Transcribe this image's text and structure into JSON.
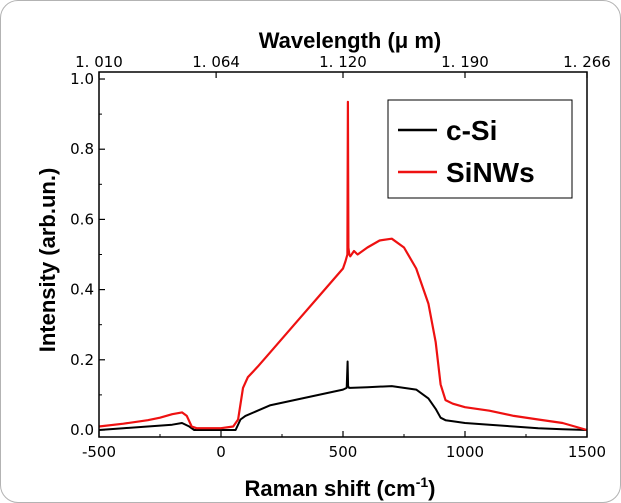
{
  "chart_data": {
    "type": "line",
    "xlabel": "Raman shift (cm",
    "xlabel_sup": "-1",
    "xlabel_tail": ")",
    "ylabel": "Intensity (arb.un.)",
    "top_axis_label": "Wavelength (μ m)",
    "xlim": [
      -500,
      1500
    ],
    "ylim": [
      -0.02,
      1.02
    ],
    "x_ticks": [
      -500,
      0,
      500,
      1000,
      1500
    ],
    "x_tick_labels": [
      "-500",
      "0",
      "500",
      "1000",
      "1500"
    ],
    "y_ticks": [
      0.0,
      0.2,
      0.4,
      0.6,
      0.8,
      1.0
    ],
    "y_tick_labels": [
      "0.0",
      "0.2",
      "0.4",
      "0.6",
      "0.8",
      "1.0"
    ],
    "top_ticks": [
      -500,
      -20,
      500,
      1000,
      1500
    ],
    "top_tick_labels": [
      "1. 010",
      "1. 064",
      "1. 120",
      "1. 190",
      "1. 266"
    ],
    "grid": false,
    "legend_position": "top-right",
    "series": [
      {
        "name": "c-Si",
        "color": "#000000",
        "x": [
          -500,
          -400,
          -300,
          -200,
          -160,
          -130,
          -110,
          -50,
          0,
          60,
          80,
          100,
          150,
          200,
          300,
          400,
          500,
          515,
          519,
          521,
          525,
          530,
          600,
          700,
          800,
          850,
          880,
          900,
          920,
          950,
          1000,
          1100,
          1200,
          1300,
          1400,
          1500
        ],
        "y": [
          0.0,
          0.005,
          0.01,
          0.015,
          0.02,
          0.01,
          0.0,
          0.0,
          0.0,
          0.0,
          0.03,
          0.04,
          0.055,
          0.07,
          0.085,
          0.1,
          0.115,
          0.12,
          0.195,
          0.125,
          0.12,
          0.12,
          0.122,
          0.125,
          0.115,
          0.09,
          0.06,
          0.035,
          0.028,
          0.025,
          0.02,
          0.015,
          0.01,
          0.005,
          0.002,
          0.0
        ]
      },
      {
        "name": "SiNWs",
        "color": "#ee1111",
        "x": [
          -500,
          -400,
          -300,
          -250,
          -200,
          -160,
          -140,
          -120,
          -100,
          -50,
          0,
          50,
          70,
          90,
          110,
          150,
          200,
          300,
          400,
          500,
          510,
          518,
          520,
          522,
          526,
          530,
          545,
          560,
          600,
          650,
          700,
          750,
          800,
          850,
          880,
          900,
          920,
          950,
          1000,
          1100,
          1200,
          1300,
          1400,
          1500
        ],
        "y": [
          0.01,
          0.018,
          0.028,
          0.035,
          0.045,
          0.05,
          0.04,
          0.01,
          0.005,
          0.005,
          0.005,
          0.01,
          0.03,
          0.12,
          0.15,
          0.18,
          0.22,
          0.3,
          0.38,
          0.46,
          0.48,
          0.5,
          0.935,
          0.52,
          0.5,
          0.495,
          0.51,
          0.5,
          0.52,
          0.54,
          0.545,
          0.52,
          0.46,
          0.36,
          0.25,
          0.13,
          0.085,
          0.075,
          0.065,
          0.055,
          0.04,
          0.03,
          0.02,
          0.0
        ]
      }
    ]
  }
}
